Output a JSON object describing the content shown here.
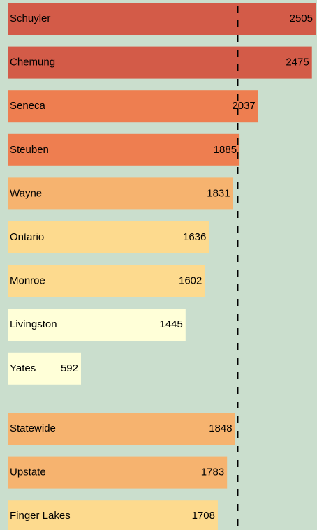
{
  "chart_data": {
    "type": "bar",
    "orientation": "horizontal",
    "categories": [
      "Schuyler",
      "Chemung",
      "Seneca",
      "Steuben",
      "Wayne",
      "Ontario",
      "Monroe",
      "Livingston",
      "Yates",
      "Statewide",
      "Upstate",
      "Finger Lakes"
    ],
    "values": [
      2505,
      2475,
      2037,
      1885,
      1831,
      1636,
      1602,
      1445,
      592,
      1848,
      1783,
      1708
    ],
    "colors": [
      "#d35b48",
      "#d35b48",
      "#ee7e50",
      "#ee7e50",
      "#f6b36f",
      "#fdda8e",
      "#fdda8e",
      "#ffffd8",
      "#ffffd8",
      "#f6b36f",
      "#f6b36f",
      "#fdda8e"
    ],
    "xlim": [
      0,
      2505
    ],
    "reference_line": 1870,
    "background": "#cadecd"
  }
}
